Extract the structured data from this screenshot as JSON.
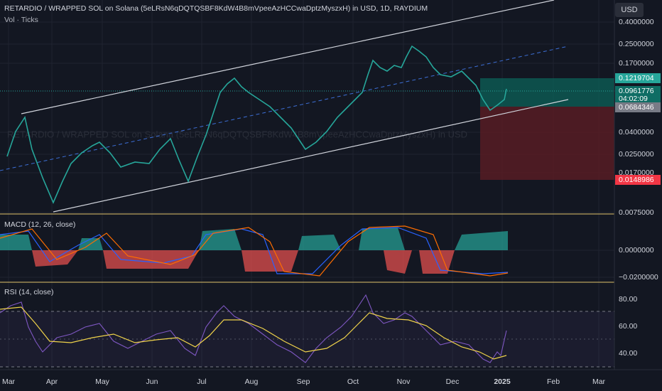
{
  "header": {
    "title": "RETARDIO / WRAPPED SOL on Solana (5eLRsN6qDQTQSBF8KdW4B8mVpeeAzHCCwaDptzMyszxH) in USD, 1D, RAYDIUM",
    "subtitle": "Vol · Ticks",
    "currency_button": "USD"
  },
  "watermark": "RETARDIO / WRAPPED SOL on Solana (5eLRsN6qDQTQSBF8KdW4B8mVpeeAzHCCwaDptzMyszxH) in USD",
  "price_axis": [
    "0.4000000",
    "0.2500000",
    "0.1700000",
    "0.0400000",
    "0.0250000",
    "0.0170000",
    "0.0075000"
  ],
  "price_tags": {
    "take_profit": "0.1219704",
    "current": "0.0961776",
    "countdown": "04:02:09",
    "entry": "0.0684346",
    "stop": "0.0148986"
  },
  "macd": {
    "label": "MACD (12, 26, close)",
    "axis": [
      "0.0000000",
      "−0.0200000"
    ]
  },
  "rsi": {
    "label": "RSI (14, close)",
    "axis": [
      "80.00",
      "60.00",
      "40.00"
    ]
  },
  "time_axis": [
    "Mar",
    "Apr",
    "May",
    "Jun",
    "Jul",
    "Aug",
    "Sep",
    "Oct",
    "Nov",
    "Dec",
    "2025",
    "Feb",
    "Mar"
  ]
}
